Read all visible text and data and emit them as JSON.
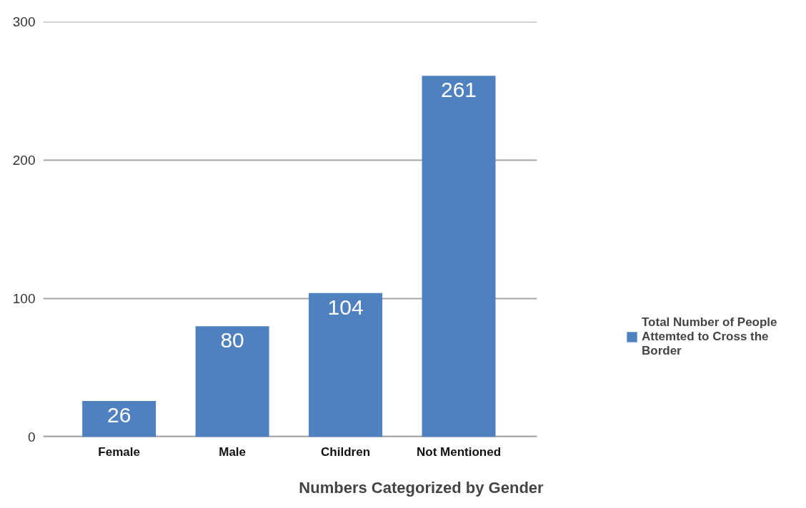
{
  "chart_data": {
    "type": "bar",
    "xlabel": "Numbers Categorized by Gender",
    "categories": [
      "Female",
      "Male",
      "Children",
      "Not Mentioned"
    ],
    "series": [
      {
        "name": "Total Number of People Attemted to Cross the Border",
        "color": "#4f81c1",
        "values": [
          26,
          80,
          104,
          261
        ]
      }
    ],
    "ylim": [
      0,
      300
    ],
    "yticks": [
      0,
      100,
      200,
      300
    ],
    "grid": "y",
    "legend": "right",
    "data_labels": true
  }
}
